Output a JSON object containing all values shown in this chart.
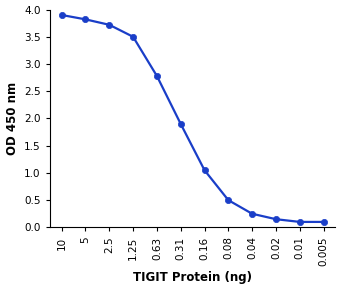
{
  "x_labels": [
    "10",
    "5",
    "2.5",
    "1.25",
    "0.63",
    "0.31",
    "0.16",
    "0.08",
    "0.04",
    "0.02",
    "0.01",
    "0.005"
  ],
  "y_values": [
    3.9,
    3.82,
    3.72,
    3.5,
    2.78,
    1.9,
    1.05,
    0.5,
    0.25,
    0.15,
    0.1,
    0.1
  ],
  "line_color": "#1a3ec8",
  "marker_color": "#1a3ec8",
  "marker_style": "o",
  "marker_size": 4.5,
  "line_width": 1.6,
  "xlabel": "TIGIT Protein (ng)",
  "ylabel": "OD 450 nm",
  "ylim": [
    0,
    4.0
  ],
  "yticks": [
    0.0,
    0.5,
    1.0,
    1.5,
    2.0,
    2.5,
    3.0,
    3.5,
    4.0
  ],
  "xlabel_fontsize": 8.5,
  "ylabel_fontsize": 8.5,
  "tick_fontsize": 7.5,
  "background_color": "#ffffff"
}
